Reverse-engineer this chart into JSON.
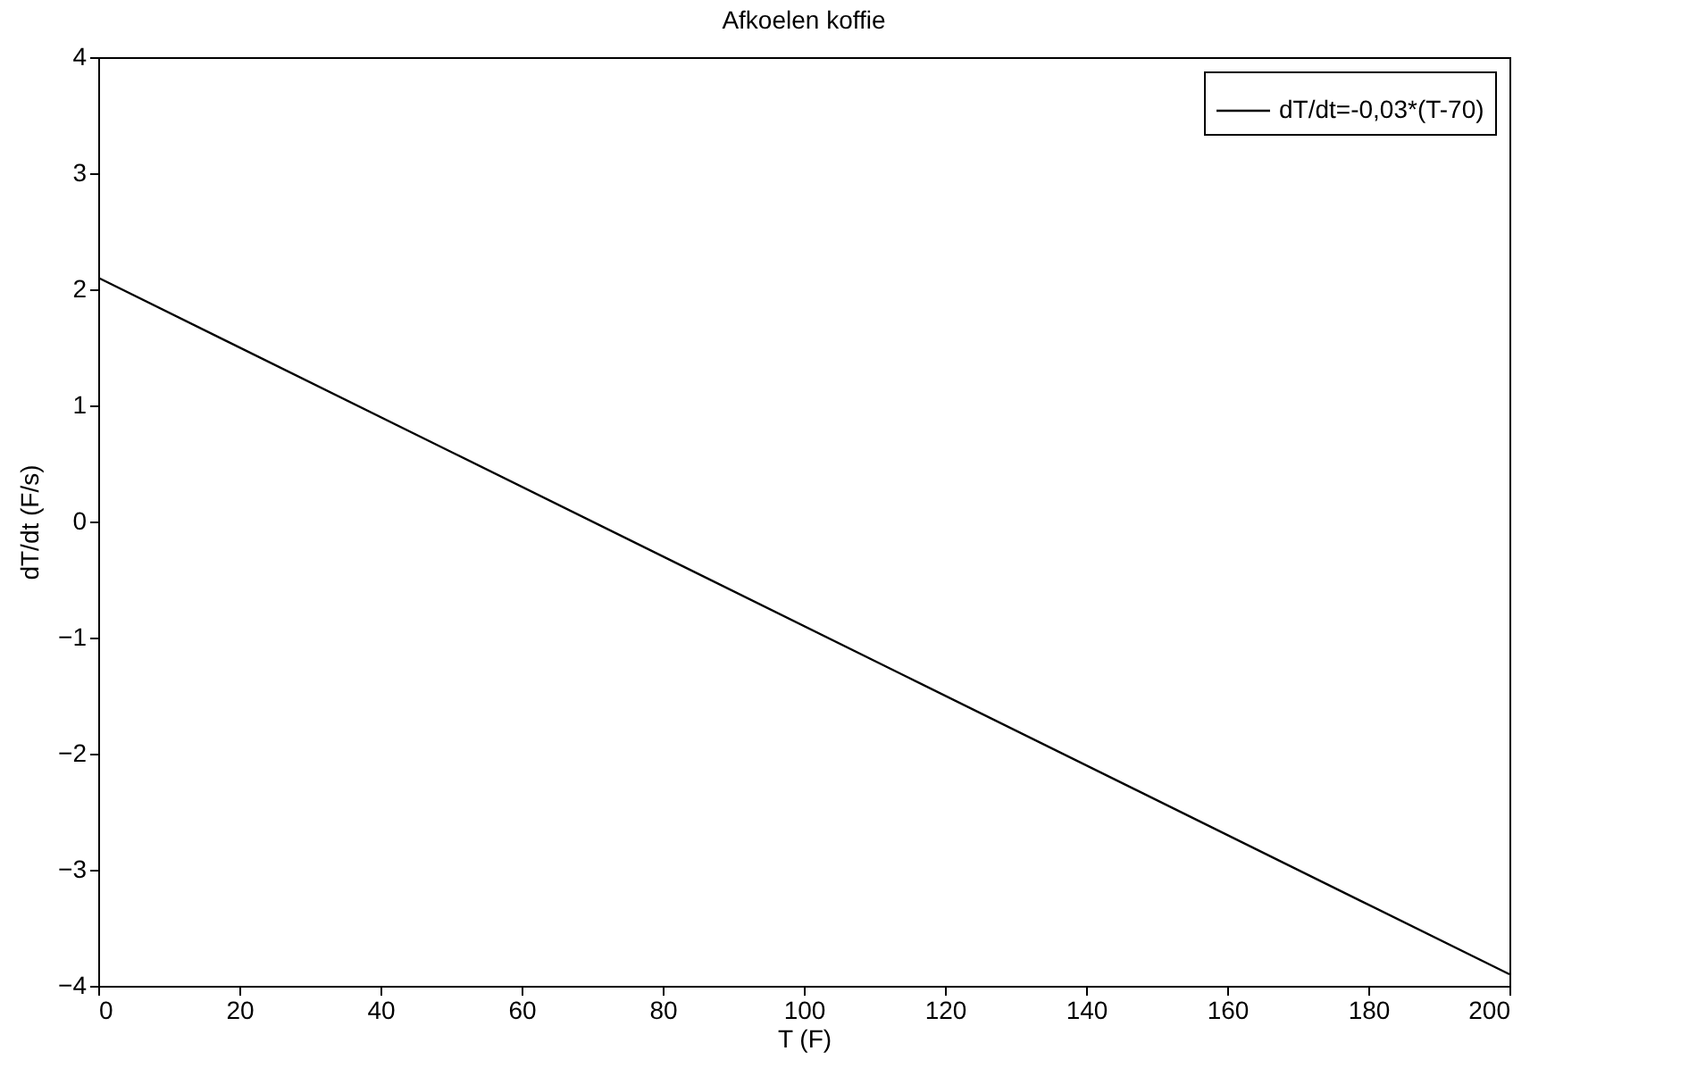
{
  "chart_data": {
    "type": "line",
    "title": "Afkoelen koffie",
    "xlabel": "T (F)",
    "ylabel": "dT/dt (F/s)",
    "x": [
      0,
      200
    ],
    "series": [
      {
        "name": "dT/dt=-0,03*(T-70)",
        "color": "#000000",
        "values": [
          2.1,
          -3.9
        ]
      }
    ],
    "xlim": [
      0,
      200
    ],
    "xticks": [
      0,
      20,
      40,
      60,
      80,
      100,
      120,
      140,
      160,
      180,
      200
    ],
    "ylim": [
      -4,
      4
    ],
    "yticks": [
      -4,
      -3,
      -2,
      -1,
      0,
      1,
      2,
      3,
      4
    ],
    "legend": "top right",
    "line_style": "solid",
    "marker": "none",
    "grid": false
  }
}
